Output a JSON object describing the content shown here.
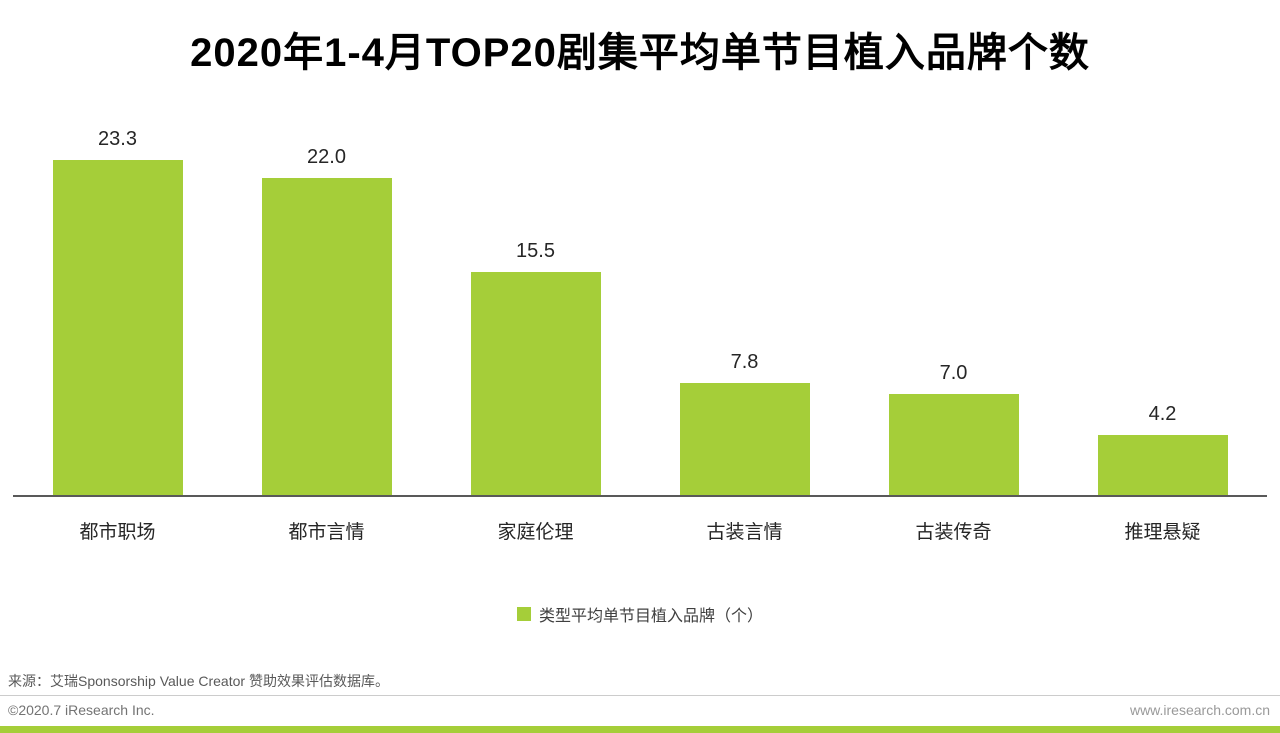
{
  "title": "2020年1-4月TOP20剧集平均单节目植入品牌个数",
  "chart_data": {
    "type": "bar",
    "title": "2020年1-4月TOP20剧集平均单节目植入品牌个数",
    "categories": [
      "都市职场",
      "都市言情",
      "家庭伦理",
      "古装言情",
      "古装传奇",
      "推理悬疑"
    ],
    "values": [
      23.3,
      22.0,
      15.5,
      7.8,
      7.0,
      4.2
    ],
    "value_labels": [
      "23.3",
      "22.0",
      "15.5",
      "7.8",
      "7.0",
      "4.2"
    ],
    "xlabel": "",
    "ylabel": "",
    "ylim": [
      0,
      25
    ],
    "grid": false,
    "legend_position": "bottom-center",
    "bar_color": "#a5ce39",
    "axis_line_color": "#595959"
  },
  "legend": {
    "label": "类型平均单节目植入品牌（个）"
  },
  "source": "来源：艾瑞Sponsorship Value Creator 赞助效果评估数据库。",
  "footer": {
    "copyright": "©2020.7 iResearch Inc.",
    "website": "www.iresearch.com.cn"
  },
  "colors": {
    "accent": "#a5ce39"
  }
}
